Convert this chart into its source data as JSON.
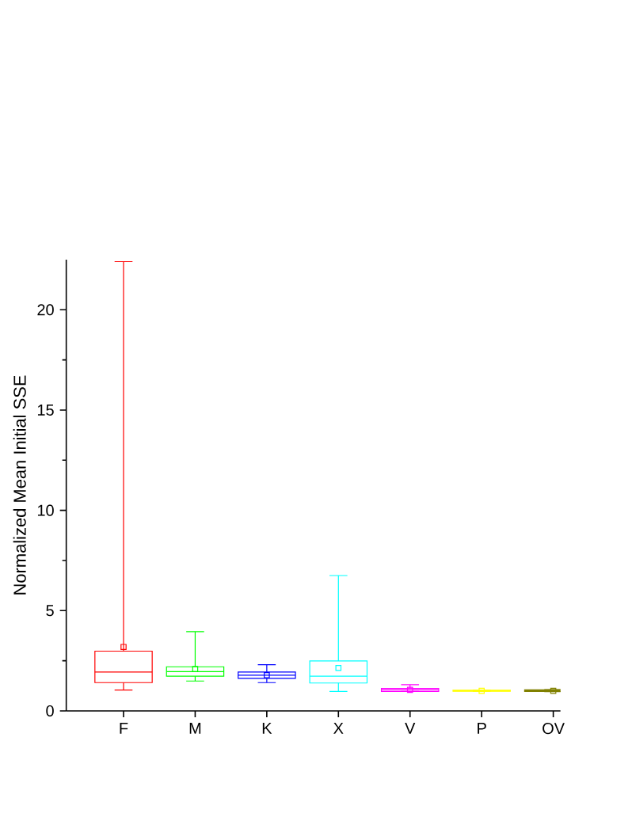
{
  "chart_data": {
    "type": "box",
    "ylabel": "Normalized Mean Initial SSE",
    "categories": [
      "F",
      "M",
      "K",
      "X",
      "V",
      "P",
      "OV"
    ],
    "ylim": [
      0,
      22.5
    ],
    "yticks": [
      0,
      5,
      10,
      15,
      20
    ],
    "marker": "square",
    "colors": [
      "#ff0000",
      "#00ff00",
      "#0000ff",
      "#00ffff",
      "#ff00ff",
      "#ffff00",
      "#808000"
    ],
    "boxes": [
      {
        "low": 1.04,
        "q1": 1.41,
        "median": 1.94,
        "q3": 2.98,
        "high": 22.4,
        "mean": 3.19
      },
      {
        "low": 1.49,
        "q1": 1.73,
        "median": 1.96,
        "q3": 2.2,
        "high": 3.95,
        "mean": 2.09
      },
      {
        "low": 1.41,
        "q1": 1.62,
        "median": 1.78,
        "q3": 1.94,
        "high": 2.3,
        "mean": 1.78
      },
      {
        "low": 0.97,
        "q1": 1.39,
        "median": 1.73,
        "q3": 2.49,
        "high": 6.75,
        "mean": 2.14
      },
      {
        "low": 0.97,
        "q1": 0.97,
        "median": 1.05,
        "q3": 1.12,
        "high": 1.31,
        "mean": 1.05
      },
      {
        "low": 0.98,
        "q1": 0.98,
        "median": 1.0,
        "q3": 1.03,
        "high": 1.03,
        "mean": 1.0
      },
      {
        "low": 0.96,
        "q1": 0.97,
        "median": 1.0,
        "q3": 1.05,
        "high": 1.06,
        "mean": 1.0
      }
    ]
  }
}
